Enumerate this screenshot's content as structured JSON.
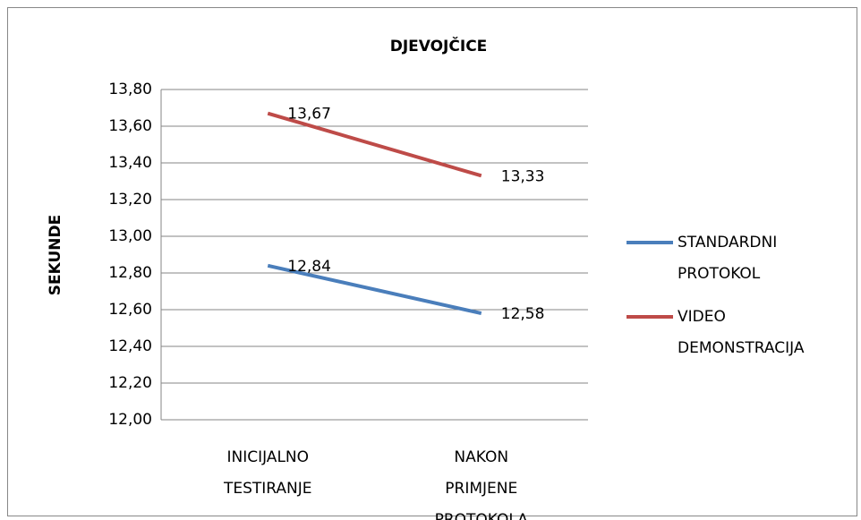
{
  "chart_data": {
    "type": "line",
    "title": "DJEVOJČICE",
    "y_label": "SEKUNDE",
    "categories": [
      "INICIJALNO TESTIRANJE",
      "NAKON PRIMJENE PROTOKOLA"
    ],
    "series": [
      {
        "name": "STANDARDNI PROTOKOL",
        "color": "#4a7ebb",
        "values": [
          12.84,
          12.58
        ],
        "value_labels": [
          "12,84",
          "12,58"
        ]
      },
      {
        "name": "VIDEO DEMONSTRACIJA",
        "color": "#be4b48",
        "values": [
          13.67,
          13.33
        ],
        "value_labels": [
          "13,67",
          "13,33"
        ]
      }
    ],
    "ylim": [
      12,
      13.8
    ],
    "yticks": [
      {
        "value": 12,
        "label": "12,00"
      },
      {
        "value": 12.2,
        "label": "12,20"
      },
      {
        "value": 12.4,
        "label": "12,40"
      },
      {
        "value": 12.6,
        "label": "12,60"
      },
      {
        "value": 12.8,
        "label": "12,80"
      },
      {
        "value": 13,
        "label": "13,00"
      },
      {
        "value": 13.2,
        "label": "13,20"
      },
      {
        "value": 13.4,
        "label": "13,40"
      },
      {
        "value": 13.6,
        "label": "13,60"
      },
      {
        "value": 13.8,
        "label": "13,80"
      }
    ],
    "grid": true,
    "legend": "right"
  }
}
